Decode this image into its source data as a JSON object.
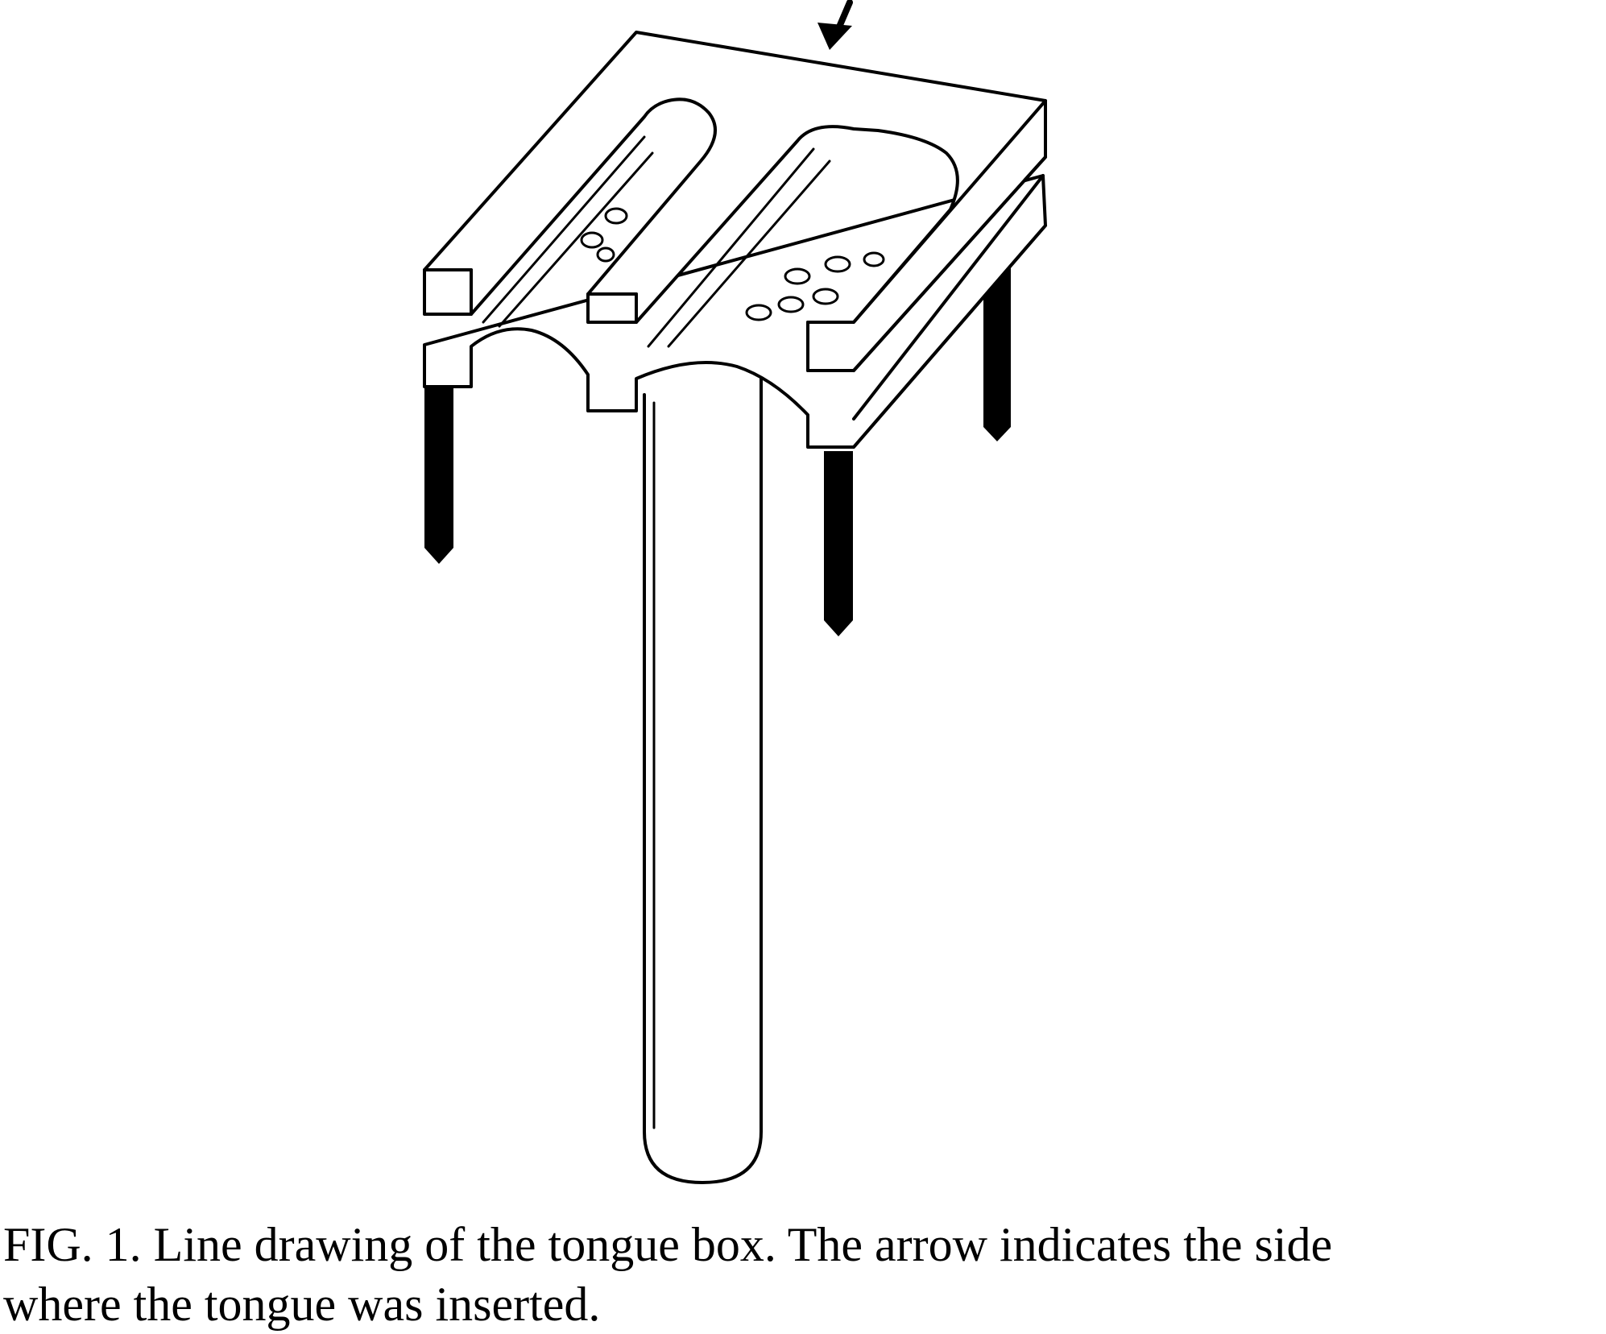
{
  "figure": {
    "caption_line1": "FIG. 1. Line drawing of the tongue box. The arrow indicates the side",
    "caption_line2": "where the tongue was inserted.",
    "ink_color": "#000000",
    "background_color": "#ffffff",
    "parts": [
      "tongue-box",
      "upper-plate",
      "lower-plate",
      "support-rod",
      "screws",
      "insertion-arrow",
      "holes"
    ]
  }
}
